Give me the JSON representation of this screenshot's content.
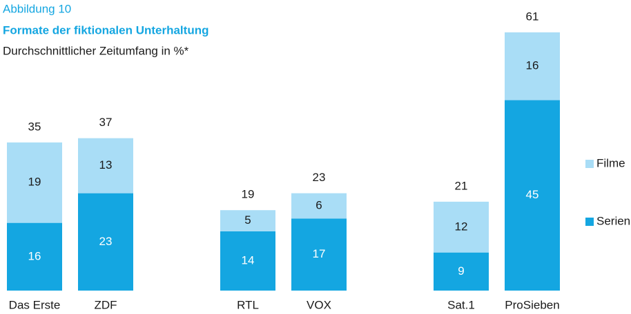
{
  "chart_data": {
    "type": "stacked_bar",
    "kicker": "Abbildung 10",
    "title": "Formate der fiktionalen Unterhaltung",
    "subtitle": "Durchschnittlicher Zeitumfang in %*",
    "categories": [
      "Das Erste",
      "ZDF",
      "RTL",
      "VOX",
      "Sat.1",
      "ProSieben"
    ],
    "series": [
      {
        "name": "Serien",
        "color": "#14a6e1",
        "values": [
          16,
          23,
          14,
          17,
          9,
          45
        ]
      },
      {
        "name": "Filme",
        "color": "#a9ddf6",
        "values": [
          19,
          13,
          5,
          6,
          12,
          16
        ]
      }
    ],
    "totals": [
      35,
      37,
      19,
      23,
      21,
      61
    ]
  }
}
